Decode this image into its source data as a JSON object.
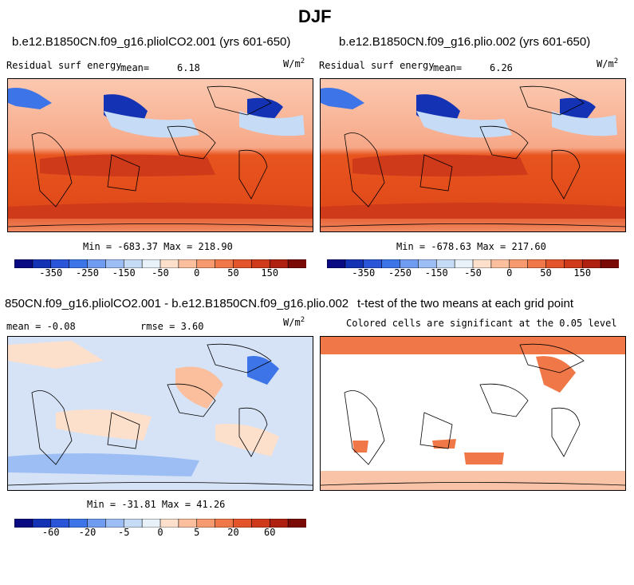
{
  "title": "DJF",
  "panels": [
    {
      "case_title": "b.e12.B1850CN.f09_g16.pliolCO2.001 (yrs 601-650)",
      "variable": "Residual surf energy",
      "mean_label": "mean=",
      "mean_value": "6.18",
      "units_base": "W/m",
      "units_exp": "2",
      "min_max": "Min = -683.37 Max = 218.90"
    },
    {
      "case_title": "b.e12.B1850CN.f09_g16.plio.002 (yrs 601-650)",
      "variable": "Residual surf energy",
      "mean_label": "mean=",
      "mean_value": "6.26",
      "units_base": "W/m",
      "units_exp": "2",
      "min_max": "Min = -678.63 Max = 217.60"
    },
    {
      "case_title": "850CN.f09_g16.pliolCO2.001 - b.e12.B1850CN.f09_g16.plio.002",
      "mean_text": "mean =  -0.08",
      "rmse_text": "rmse =   3.60",
      "units_base": "W/m",
      "units_exp": "2",
      "min_max": "Min = -31.81 Max = 41.26"
    },
    {
      "case_title": "t-test of the two means at each grid point",
      "subtitle": "Colored cells are significant at the 0.05 level"
    }
  ],
  "colorbar_abs": {
    "colors": [
      "#0a0a82",
      "#1432b4",
      "#2a55d8",
      "#3d75e8",
      "#6f9cf0",
      "#9dbef4",
      "#c6dcf6",
      "#e8f0f8",
      "#fde0cc",
      "#fbbf9e",
      "#f79a70",
      "#f07848",
      "#e3542a",
      "#cf3a1a",
      "#b02010",
      "#7a0a05"
    ],
    "labels": [
      "-350",
      "-250",
      "-150",
      "-50",
      "0",
      "50",
      "150"
    ]
  },
  "colorbar_diff": {
    "colors": [
      "#0a0a82",
      "#1432b4",
      "#2a55d8",
      "#3d75e8",
      "#6f9cf0",
      "#9dbef4",
      "#c6dcf6",
      "#e8f0f8",
      "#fde0cc",
      "#fbbf9e",
      "#f79a70",
      "#f07848",
      "#e3542a",
      "#cf3a1a",
      "#b02010",
      "#7a0a05"
    ],
    "labels": [
      "-60",
      "-20",
      "-5",
      "0",
      "5",
      "20",
      "60"
    ]
  },
  "colors": {
    "ocean_warm": "#e8541e",
    "ocean_mid": "#f0825a",
    "land_light": "#f6b49a",
    "cold_blue": "#2a55d8",
    "signif": "#f07848"
  }
}
